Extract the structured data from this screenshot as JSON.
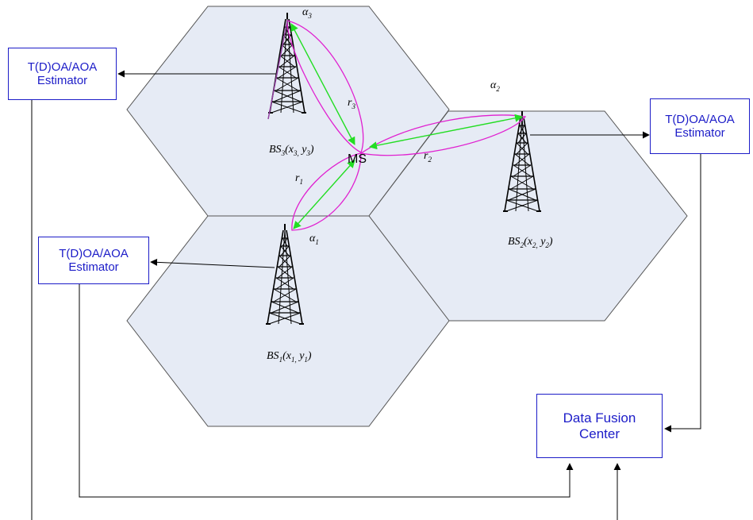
{
  "colors": {
    "hex_fill": "#e6ebf5",
    "hex_stroke": "#555555",
    "box_border": "#1c1cc8",
    "box_text": "#1c1cc8",
    "range_loop": "#e020d0",
    "link_arrow": "#22dd22",
    "connector": "#000000"
  },
  "estimators": [
    {
      "line1": "T(D)OA/AOA",
      "line2": "Estimator"
    },
    {
      "line1": "T(D)OA/AOA",
      "line2": "Estimator"
    },
    {
      "line1": "T(D)OA/AOA",
      "line2": "Estimator"
    }
  ],
  "fusion_center": {
    "line1": "Data Fusion",
    "line2": "Center"
  },
  "mobile_station": "MS",
  "base_stations": [
    {
      "prefix": "BS",
      "sub": "1",
      "coords": "(x",
      "xsub": "1,",
      "mid": " y",
      "ysub": "1",
      "close": ")"
    },
    {
      "prefix": "BS",
      "sub": "2",
      "coords": "(x",
      "xsub": "2,",
      "mid": " y",
      "ysub": "2",
      "close": ")"
    },
    {
      "prefix": "BS",
      "sub": "3",
      "coords": "(x",
      "xsub": "3,",
      "mid": " y",
      "ysub": "3",
      "close": ")"
    }
  ],
  "ranges": [
    {
      "sym": "r",
      "sub": "1"
    },
    {
      "sym": "r",
      "sub": "2"
    },
    {
      "sym": "r",
      "sub": "3"
    }
  ],
  "angles": [
    {
      "sym": "α",
      "sub": "1"
    },
    {
      "sym": "α",
      "sub": "2"
    },
    {
      "sym": "α",
      "sub": "3"
    }
  ]
}
